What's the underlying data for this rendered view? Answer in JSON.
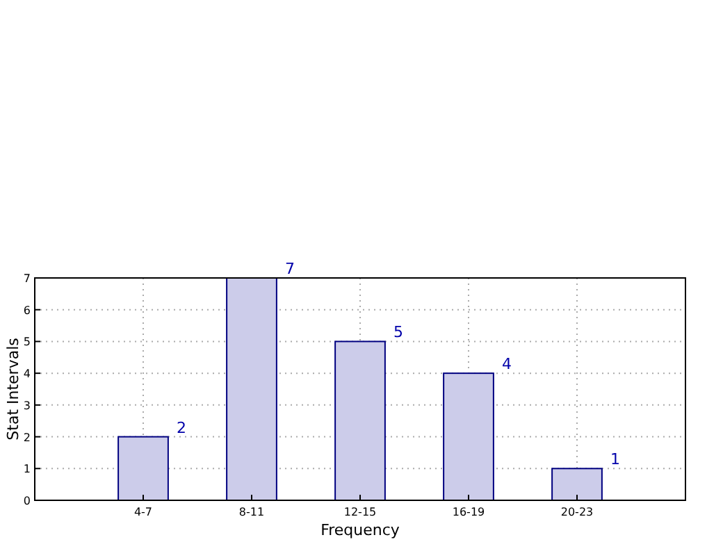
{
  "chart_data": {
    "type": "bar",
    "xlabel": "Frequency",
    "ylabel": "Stat Intervals",
    "categories": [
      "4-7",
      "8-11",
      "12-15",
      "16-19",
      "20-23"
    ],
    "values": [
      2,
      7,
      5,
      4,
      1
    ],
    "color": "#ccccea",
    "ylim": [
      0,
      7
    ],
    "yticks": [
      0,
      1,
      2,
      3,
      4,
      5,
      6,
      7
    ],
    "grid": true,
    "data_labels": true
  }
}
